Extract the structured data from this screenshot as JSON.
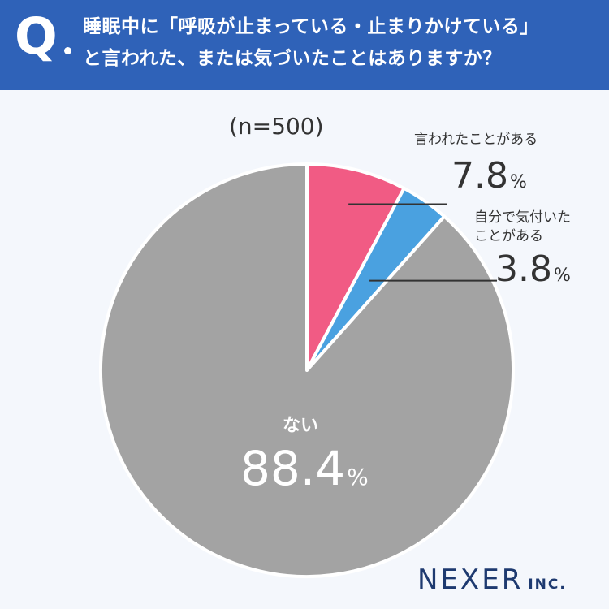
{
  "header": {
    "q_mark": "Q",
    "question_line1": "睡眠中に「呼吸が止まっている・止まりかけている」",
    "question_line2": "と言われた、または気づいたことはありますか？"
  },
  "sample_size": "(n=500)",
  "labels": {
    "told": "言われたことがある",
    "self_line1": "自分で気付いた",
    "self_line2": "ことがある",
    "none": "ない",
    "unit": "%",
    "told_value": "7.8",
    "self_value": "3.8",
    "none_value": "88.4"
  },
  "brand": {
    "name": "NEXER",
    "suffix": "INC."
  },
  "chart_data": {
    "type": "pie",
    "categories": [
      "言われたことがある",
      "自分で気付いたことがある",
      "ない"
    ],
    "values": [
      7.8,
      3.8,
      88.4
    ],
    "colors": [
      "#f15b84",
      "#4aa1e0",
      "#a3a3a3"
    ],
    "start_angle": "12 o'clock",
    "direction": "clockwise"
  }
}
